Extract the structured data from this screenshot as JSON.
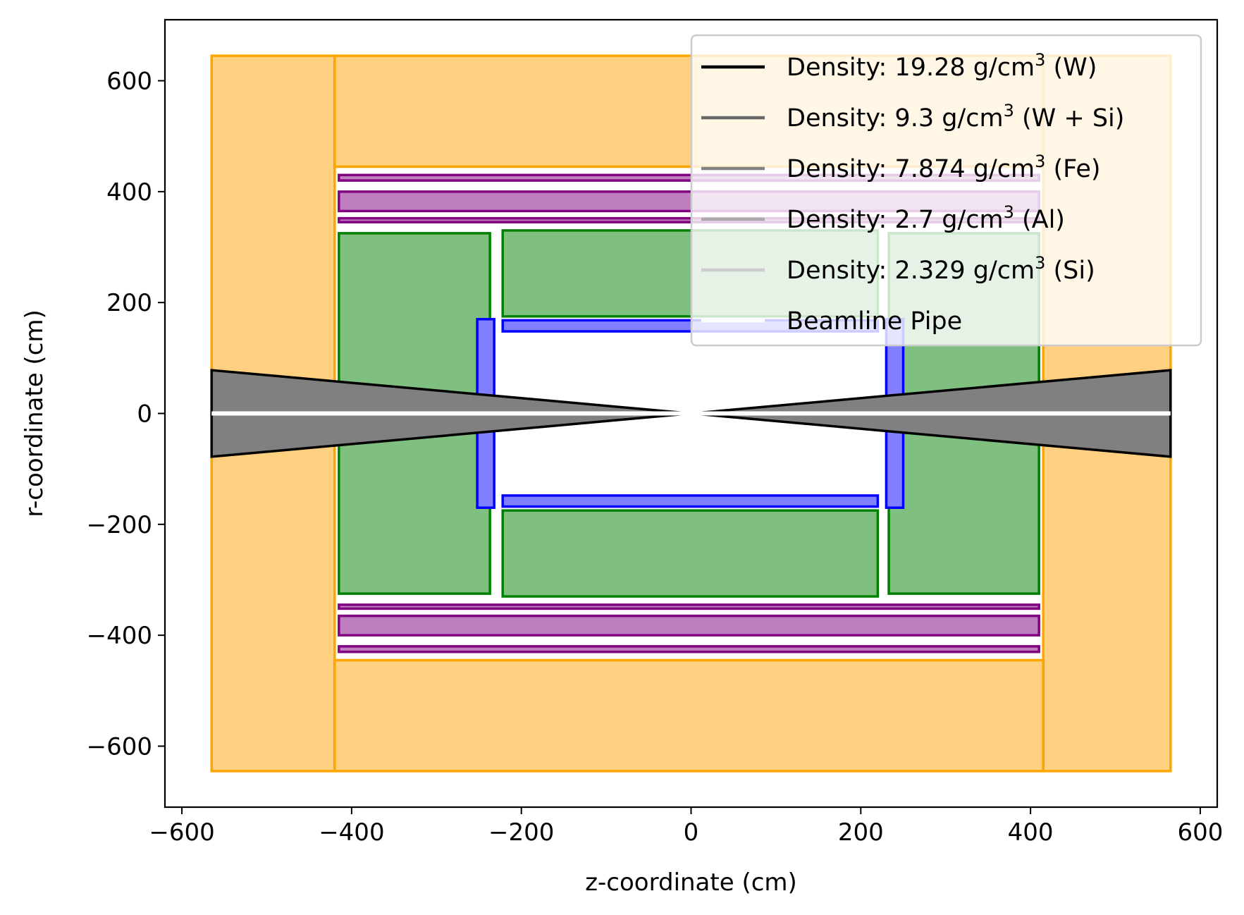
{
  "chart_data": {
    "type": "area",
    "title": "",
    "xlabel": "z-coordinate (cm)",
    "ylabel": "r-coordinate (cm)",
    "xlim": [
      -620,
      620
    ],
    "ylim": [
      -710,
      710
    ],
    "xticks": [
      -600,
      -400,
      -200,
      0,
      200,
      400,
      600
    ],
    "yticks": [
      -600,
      -400,
      -200,
      0,
      200,
      400,
      600
    ],
    "xtick_labels": [
      "−600",
      "−400",
      "−200",
      "0",
      "200",
      "400",
      "600"
    ],
    "ytick_labels": [
      "−600",
      "−400",
      "−200",
      "0",
      "200",
      "400",
      "600"
    ],
    "grid": false,
    "legend_position": "top-right",
    "colors": {
      "orange_fill": "#fed080",
      "orange_edge": "#ffa500",
      "purple_fill": "#bf7fbf",
      "purple_edge": "#800080",
      "green_fill": "#7fbf7f",
      "green_edge": "#008000",
      "blue_fill": "#7f7fff",
      "blue_edge": "#0000ff",
      "black_cone_fill": "#808080",
      "beamline": "#ffffff"
    },
    "shapes": [
      {
        "kind": "rect",
        "group": "magnet-yoke",
        "z": [
          -565,
          -420
        ],
        "r": [
          -645,
          645
        ],
        "fill": "orange_fill",
        "edge": "orange_edge"
      },
      {
        "kind": "rect",
        "group": "magnet-yoke",
        "z": [
          415,
          565
        ],
        "r": [
          -645,
          645
        ],
        "fill": "orange_fill",
        "edge": "orange_edge"
      },
      {
        "kind": "rect",
        "group": "magnet-yoke",
        "z": [
          -420,
          415
        ],
        "r": [
          445,
          645
        ],
        "fill": "orange_fill",
        "edge": "orange_edge"
      },
      {
        "kind": "rect",
        "group": "magnet-yoke",
        "z": [
          -420,
          415
        ],
        "r": [
          -645,
          -445
        ],
        "fill": "orange_fill",
        "edge": "orange_edge"
      },
      {
        "kind": "rect",
        "group": "muon",
        "z": [
          -415,
          410
        ],
        "r": [
          420,
          430
        ],
        "fill": "purple_fill",
        "edge": "purple_edge"
      },
      {
        "kind": "rect",
        "group": "muon",
        "z": [
          -415,
          410
        ],
        "r": [
          365,
          400
        ],
        "fill": "purple_fill",
        "edge": "purple_edge"
      },
      {
        "kind": "rect",
        "group": "muon",
        "z": [
          -415,
          410
        ],
        "r": [
          345,
          352
        ],
        "fill": "purple_fill",
        "edge": "purple_edge"
      },
      {
        "kind": "rect",
        "group": "muon",
        "z": [
          -415,
          410
        ],
        "r": [
          -352,
          -345
        ],
        "fill": "purple_fill",
        "edge": "purple_edge"
      },
      {
        "kind": "rect",
        "group": "muon",
        "z": [
          -415,
          410
        ],
        "r": [
          -400,
          -365
        ],
        "fill": "purple_fill",
        "edge": "purple_edge"
      },
      {
        "kind": "rect",
        "group": "muon",
        "z": [
          -415,
          410
        ],
        "r": [
          -430,
          -420
        ],
        "fill": "purple_fill",
        "edge": "purple_edge"
      },
      {
        "kind": "rect",
        "group": "hcal",
        "z": [
          -415,
          -237
        ],
        "r": [
          -325,
          325
        ],
        "fill": "green_fill",
        "edge": "green_edge"
      },
      {
        "kind": "rect",
        "group": "hcal",
        "z": [
          233,
          410
        ],
        "r": [
          -325,
          325
        ],
        "fill": "green_fill",
        "edge": "green_edge"
      },
      {
        "kind": "rect",
        "group": "hcal",
        "z": [
          -222,
          220
        ],
        "r": [
          175,
          330
        ],
        "fill": "green_fill",
        "edge": "green_edge"
      },
      {
        "kind": "rect",
        "group": "hcal",
        "z": [
          -222,
          220
        ],
        "r": [
          -330,
          -175
        ],
        "fill": "green_fill",
        "edge": "green_edge"
      },
      {
        "kind": "rect",
        "group": "ecal",
        "z": [
          -252,
          -232
        ],
        "r": [
          -170,
          170
        ],
        "fill": "blue_fill",
        "edge": "blue_edge"
      },
      {
        "kind": "rect",
        "group": "ecal",
        "z": [
          230,
          250
        ],
        "r": [
          -170,
          170
        ],
        "fill": "blue_fill",
        "edge": "blue_edge"
      },
      {
        "kind": "rect",
        "group": "ecal",
        "z": [
          -222,
          220
        ],
        "r": [
          148,
          168
        ],
        "fill": "blue_fill",
        "edge": "blue_edge"
      },
      {
        "kind": "rect",
        "group": "ecal",
        "z": [
          -222,
          220
        ],
        "r": [
          -168,
          -148
        ],
        "fill": "blue_fill",
        "edge": "blue_edge"
      },
      {
        "kind": "polygon",
        "group": "forward-cone",
        "points": [
          [
            0,
            0
          ],
          [
            565,
            78
          ],
          [
            565,
            -78
          ]
        ],
        "fill": "black_cone_fill",
        "edge": "#000000"
      },
      {
        "kind": "polygon",
        "group": "forward-cone",
        "points": [
          [
            0,
            0
          ],
          [
            -565,
            78
          ],
          [
            -565,
            -78
          ]
        ],
        "fill": "black_cone_fill",
        "edge": "#000000"
      },
      {
        "kind": "line",
        "group": "beamline",
        "z": [
          -565,
          565
        ],
        "r": [
          0,
          0
        ],
        "edge": "beamline"
      }
    ],
    "legend": [
      {
        "text": "Density: 19.28 g/cm",
        "sup": "3",
        "suffix": " (W)",
        "color": "#000000"
      },
      {
        "text": "Density: 9.3 g/cm",
        "sup": "3",
        "suffix": " (W + Si)",
        "color": "#666666"
      },
      {
        "text": "Density: 7.874 g/cm",
        "sup": "3",
        "suffix": " (Fe)",
        "color": "#808080"
      },
      {
        "text": "Density: 2.7 g/cm",
        "sup": "3",
        "suffix": " (Al)",
        "color": "#aaaaaa"
      },
      {
        "text": "Density: 2.329 g/cm",
        "sup": "3",
        "suffix": " (Si)",
        "color": "#cccccc"
      },
      {
        "text": "Beamline Pipe",
        "sup": "",
        "suffix": "",
        "color": "#ffffff"
      }
    ]
  }
}
